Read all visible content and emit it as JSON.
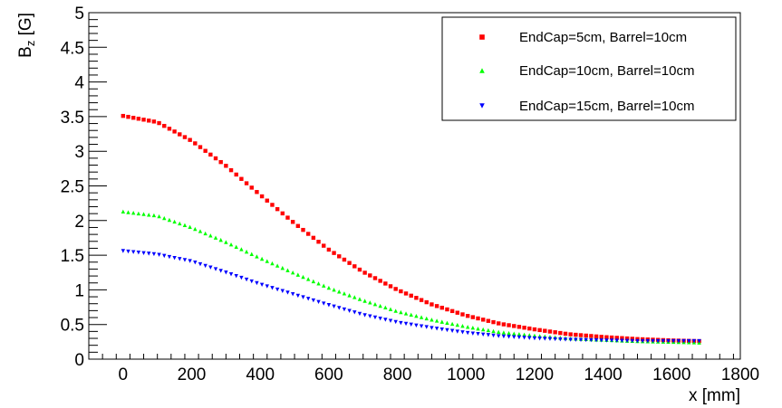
{
  "chart_data": {
    "type": "scatter",
    "title": "",
    "xlabel": "x [mm]",
    "ylabel_base": "B",
    "ylabel_sub": "z",
    "ylabel_unit": " [G]",
    "xlim": [
      -100,
      1800
    ],
    "ylim": [
      0,
      5
    ],
    "x_ticks": [
      0,
      200,
      400,
      600,
      800,
      1000,
      1200,
      1400,
      1600,
      1800
    ],
    "y_ticks": [
      0,
      0.5,
      1,
      1.5,
      2,
      2.5,
      3,
      3.5,
      4,
      4.5,
      5
    ],
    "y_tick_labels": [
      "0",
      "0.5",
      "1",
      "1.5",
      "2",
      "2.5",
      "3",
      "3.5",
      "4",
      "4.5",
      "5"
    ],
    "grid": false,
    "legend_position": "top-right",
    "x_sampling": {
      "start": 0,
      "step": 15,
      "count": 113
    },
    "series": [
      {
        "name": "EndCap=5cm, Barrel=10cm",
        "color": "#ff0000",
        "marker": "square",
        "profile": {
          "x": [
            0,
            100,
            200,
            300,
            400,
            500,
            600,
            700,
            800,
            900,
            1000,
            1100,
            1200,
            1300,
            1400,
            1500,
            1600,
            1680
          ],
          "y": [
            3.51,
            3.42,
            3.15,
            2.79,
            2.37,
            1.96,
            1.58,
            1.26,
            1.0,
            0.79,
            0.63,
            0.51,
            0.43,
            0.36,
            0.32,
            0.29,
            0.27,
            0.26
          ]
        }
      },
      {
        "name": "EndCap=10cm, Barrel=10cm",
        "color": "#00ff00",
        "marker": "triangle-up",
        "profile": {
          "x": [
            0,
            100,
            200,
            300,
            400,
            500,
            600,
            700,
            800,
            900,
            1000,
            1100,
            1200,
            1300,
            1400,
            1500,
            1600,
            1680
          ],
          "y": [
            2.13,
            2.07,
            1.9,
            1.69,
            1.46,
            1.24,
            1.03,
            0.85,
            0.69,
            0.57,
            0.47,
            0.39,
            0.34,
            0.3,
            0.28,
            0.26,
            0.25,
            0.24
          ]
        }
      },
      {
        "name": "EndCap=15cm, Barrel=10cm",
        "color": "#0000ff",
        "marker": "triangle-down",
        "profile": {
          "x": [
            0,
            100,
            200,
            300,
            400,
            500,
            600,
            700,
            800,
            900,
            1000,
            1100,
            1200,
            1300,
            1400,
            1500,
            1600,
            1680
          ],
          "y": [
            1.56,
            1.51,
            1.41,
            1.25,
            1.08,
            0.93,
            0.78,
            0.64,
            0.53,
            0.45,
            0.38,
            0.33,
            0.3,
            0.28,
            0.27,
            0.26,
            0.26,
            0.26
          ]
        }
      }
    ]
  }
}
